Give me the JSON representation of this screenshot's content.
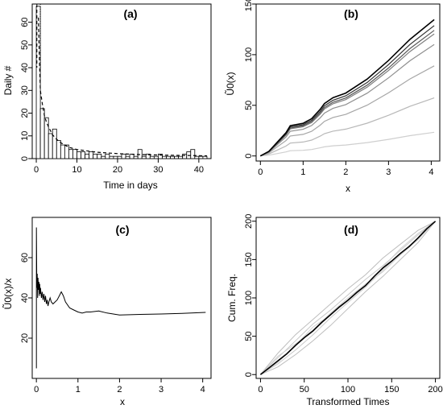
{
  "chart_data": [
    {
      "panel": "(a)",
      "type": "bar",
      "title": "(a)",
      "xlabel": "Time in days",
      "ylabel": "Daily #",
      "xlim": [
        -1,
        43
      ],
      "ylim": [
        0,
        68
      ],
      "xticks": [
        0,
        10,
        20,
        30,
        40
      ],
      "yticks": [
        0,
        10,
        20,
        30,
        40,
        50,
        60
      ],
      "bar_width": 1,
      "bar_starts": [
        0,
        1,
        2,
        3,
        4,
        5,
        6,
        7,
        8,
        9,
        10,
        11,
        12,
        13,
        14,
        15,
        16,
        17,
        18,
        19,
        20,
        21,
        22,
        23,
        24,
        25,
        26,
        27,
        28,
        29,
        30,
        31,
        32,
        33,
        34,
        35,
        36,
        37,
        38,
        39,
        40,
        41
      ],
      "values": [
        67,
        22,
        18,
        11,
        13,
        8,
        6,
        6,
        4,
        4,
        3,
        3,
        2,
        3,
        2,
        2,
        1,
        2,
        1,
        1,
        1,
        2,
        1,
        2,
        1,
        4,
        1,
        2,
        1,
        1,
        2,
        1,
        1,
        1,
        1,
        1,
        2,
        3,
        4,
        1,
        1,
        1
      ],
      "fit_curve": {
        "style": "dashed",
        "x": [
          0.5,
          0.8,
          1.0,
          1.5,
          2,
          2.5,
          3,
          4,
          5,
          6,
          7,
          8,
          10,
          12,
          15,
          20,
          25,
          30,
          35,
          40,
          42
        ],
        "y": [
          62,
          42,
          30,
          24,
          19,
          16,
          14,
          10.5,
          8.5,
          7,
          6,
          5,
          4,
          3.5,
          2.8,
          2.2,
          1.8,
          1.6,
          1.4,
          1.3,
          1.2
        ]
      },
      "markers": [
        {
          "style": "dashed",
          "x": 0.15
        },
        {
          "style": "dotted",
          "x": 1.0
        }
      ]
    },
    {
      "panel": "(b)",
      "type": "line",
      "title": "(b)",
      "xlabel": "x",
      "ylabel": "Ũ0(x)",
      "xlim": [
        -0.1,
        4.2
      ],
      "ylim": [
        -5,
        150
      ],
      "xticks": [
        0,
        1,
        2,
        3,
        4
      ],
      "yticks": [
        0,
        50,
        100,
        150
      ],
      "x": [
        0,
        0.2,
        0.4,
        0.6,
        0.7,
        1.0,
        1.2,
        1.4,
        1.5,
        1.7,
        2.0,
        2.5,
        3.0,
        3.5,
        4.07
      ],
      "base_shape": [
        0,
        4,
        12,
        20,
        26,
        28,
        32,
        40,
        45,
        50,
        54,
        66,
        82,
        100,
        117
      ],
      "series": [
        {
          "scale": 1.15,
          "color": "#000000"
        },
        {
          "scale": 1.1,
          "color": "#2f2f2f"
        },
        {
          "scale": 1.06,
          "color": "#595959"
        },
        {
          "scale": 1.03,
          "color": "#808080"
        },
        {
          "scale": 0.94,
          "color": "#8f8f8f"
        },
        {
          "scale": 0.76,
          "color": "#a6a6a6"
        },
        {
          "scale": 0.49,
          "color": "#b8b8b8"
        },
        {
          "scale": 0.2,
          "color": "#cfcfcf"
        }
      ]
    },
    {
      "panel": "(c)",
      "type": "line",
      "title": "(c)",
      "xlabel": "x",
      "ylabel": "Ũ0(x)/x",
      "xlim": [
        -0.1,
        4.2
      ],
      "ylim": [
        0,
        80
      ],
      "xticks": [
        0,
        1,
        2,
        3,
        4
      ],
      "yticks": [
        20,
        40,
        60
      ],
      "x": [
        0.0,
        0.0,
        0.01,
        0.02,
        0.03,
        0.04,
        0.05,
        0.06,
        0.07,
        0.08,
        0.09,
        0.1,
        0.12,
        0.14,
        0.16,
        0.18,
        0.2,
        0.22,
        0.24,
        0.26,
        0.28,
        0.3,
        0.33,
        0.36,
        0.4,
        0.45,
        0.5,
        0.55,
        0.6,
        0.65,
        0.7,
        0.8,
        0.9,
        1.0,
        1.1,
        1.2,
        1.3,
        1.5,
        1.7,
        2.0,
        2.5,
        3.0,
        3.5,
        4.07
      ],
      "y": [
        5,
        75,
        45,
        52,
        40,
        50,
        44,
        48,
        41,
        47,
        42,
        45,
        40,
        43,
        39,
        42,
        38,
        41,
        37,
        39,
        36,
        38,
        40,
        38,
        37,
        38,
        39,
        41,
        43,
        41,
        38,
        35,
        34,
        33,
        32.5,
        33,
        33,
        33.5,
        32.5,
        31.5,
        31.8,
        32,
        32.3,
        32.8
      ]
    },
    {
      "panel": "(d)",
      "type": "line",
      "title": "(d)",
      "xlabel": "Transformed Times",
      "ylabel": "Cum. Freq.",
      "xlim": [
        -5,
        205
      ],
      "ylim": [
        -5,
        205
      ],
      "xticks": [
        0,
        50,
        100,
        150,
        200
      ],
      "yticks": [
        0,
        50,
        100,
        150,
        200
      ],
      "main_series": {
        "color": "#000000",
        "x": [
          0,
          10,
          20,
          30,
          40,
          50,
          60,
          70,
          80,
          90,
          100,
          110,
          120,
          130,
          140,
          150,
          160,
          170,
          180,
          190,
          200
        ],
        "y": [
          0,
          9,
          18,
          27,
          38,
          48,
          57,
          68,
          78,
          88,
          97,
          107,
          116,
          128,
          139,
          148,
          158,
          167,
          178,
          190,
          200
        ]
      },
      "envelope": [
        {
          "color": "#bdbdbd",
          "x": [
            0,
            20,
            40,
            60,
            80,
            100,
            120,
            140,
            160,
            180,
            200
          ],
          "y": [
            0,
            28,
            52,
            72,
            92,
            112,
            130,
            152,
            170,
            188,
            200
          ]
        },
        {
          "color": "#bdbdbd",
          "x": [
            0,
            20,
            40,
            60,
            80,
            100,
            120,
            140,
            160,
            180,
            200
          ],
          "y": [
            0,
            10,
            26,
            44,
            64,
            86,
            108,
            128,
            150,
            172,
            200
          ]
        },
        {
          "color": "#c8c8c8",
          "x": [
            0,
            20,
            40,
            60,
            80,
            100,
            120,
            140,
            160,
            180,
            200
          ],
          "y": [
            0,
            22,
            44,
            66,
            84,
            104,
            124,
            142,
            162,
            182,
            200
          ]
        },
        {
          "color": "#c8c8c8",
          "x": [
            0,
            20,
            40,
            60,
            80,
            100,
            120,
            140,
            160,
            180,
            200
          ],
          "y": [
            0,
            14,
            32,
            52,
            74,
            94,
            114,
            136,
            158,
            178,
            200
          ]
        },
        {
          "color": "#d0d0d0",
          "x": [
            0,
            20,
            40,
            60,
            80,
            100,
            120,
            140,
            160,
            180,
            200
          ],
          "y": [
            0,
            24,
            40,
            58,
            80,
            100,
            118,
            134,
            156,
            176,
            200
          ]
        },
        {
          "color": "#d0d0d0",
          "x": [
            0,
            20,
            40,
            60,
            80,
            100,
            120,
            140,
            160,
            180,
            200
          ],
          "y": [
            0,
            16,
            38,
            62,
            78,
            96,
            116,
            140,
            164,
            184,
            200
          ]
        }
      ]
    }
  ]
}
